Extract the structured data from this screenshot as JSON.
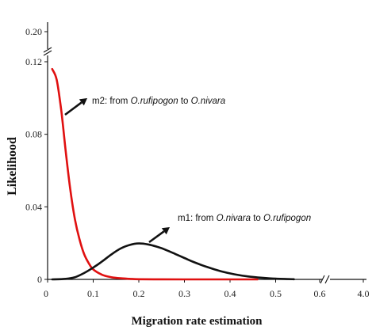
{
  "chart_data": {
    "type": "line",
    "xlabel": "Migration rate estimation",
    "ylabel": "Likelihood",
    "x_ticks": [
      "0",
      "0.1",
      "0.2",
      "0.3",
      "0.4",
      "0.5",
      "0.6",
      "4.0"
    ],
    "y_ticks": [
      "0",
      "0.04",
      "0.08",
      "0.12",
      "0.20"
    ],
    "y_lower_range": [
      0,
      0.12
    ],
    "y_upper_range": [
      0.12,
      0.2
    ],
    "x_lower_range": [
      0,
      0.6
    ],
    "axis_breaks": {
      "y": "between 0.12 and 0.20",
      "x": "between 0.6 and 4.0"
    },
    "series": [
      {
        "color": "#e01010",
        "annotation_parts": [
          "m2: from ",
          "O.rufipogon",
          " to ",
          "O.nivara"
        ],
        "x": [
          0.01,
          0.02,
          0.03,
          0.04,
          0.05,
          0.06,
          0.07,
          0.08,
          0.09,
          0.1,
          0.12,
          0.14,
          0.16,
          0.18,
          0.2,
          0.25,
          0.3,
          0.35,
          0.4,
          0.46
        ],
        "y": [
          0.116,
          0.11,
          0.093,
          0.07,
          0.049,
          0.033,
          0.022,
          0.014,
          0.009,
          0.0055,
          0.0025,
          0.0012,
          0.0006,
          0.0003,
          0.0001,
          3e-05,
          0.0,
          0.0,
          0.0,
          0.0
        ]
      },
      {
        "color": "#111111",
        "annotation_parts": [
          "m1: from ",
          "O.nivara",
          " to ",
          "O.rufipogon"
        ],
        "x": [
          0.01,
          0.04,
          0.06,
          0.08,
          0.1,
          0.12,
          0.14,
          0.16,
          0.18,
          0.2,
          0.22,
          0.24,
          0.26,
          0.28,
          0.3,
          0.32,
          0.35,
          0.38,
          0.41,
          0.44,
          0.47,
          0.5,
          0.54
        ],
        "y": [
          0.0,
          0.0003,
          0.0012,
          0.0035,
          0.0065,
          0.01,
          0.0138,
          0.017,
          0.019,
          0.0198,
          0.0193,
          0.018,
          0.0162,
          0.014,
          0.0118,
          0.0096,
          0.0068,
          0.0045,
          0.0028,
          0.0016,
          0.0009,
          0.0004,
          0.0001
        ]
      }
    ]
  }
}
